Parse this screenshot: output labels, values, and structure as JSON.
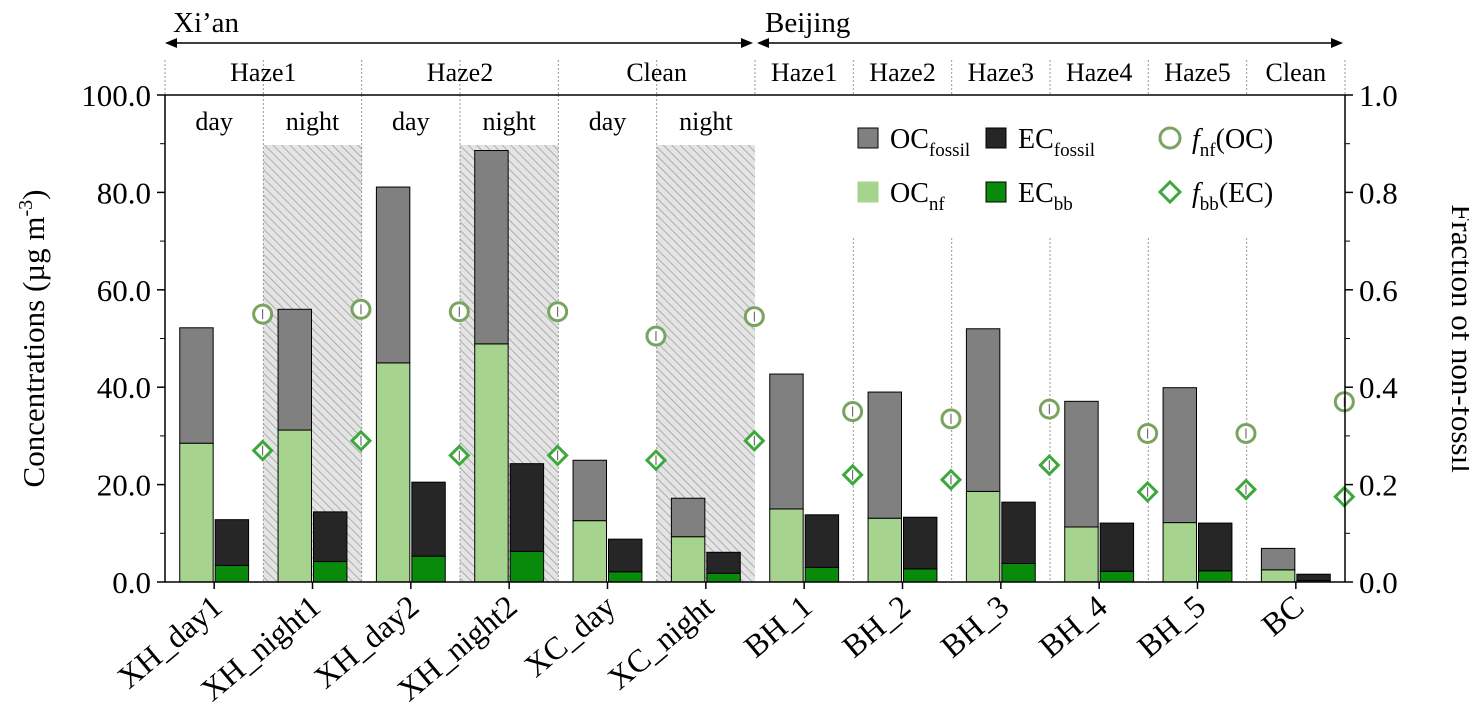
{
  "chart_data": {
    "type": "bar",
    "ylabel": "Concentrations (µg m",
    "ylabel_sup": "-3",
    "ylabel_close": ")",
    "y2label": "Fraction of non-fossil",
    "ylim": [
      0,
      100
    ],
    "y2lim": [
      0,
      1
    ],
    "yticks": [
      "0.0",
      "20.0",
      "40.0",
      "60.0",
      "80.0",
      "100.0"
    ],
    "y2ticks": [
      "0.0",
      "0.2",
      "0.4",
      "0.6",
      "0.8",
      "1.0"
    ],
    "regions": [
      {
        "label": "Xi’an",
        "from": 0,
        "to": 5
      },
      {
        "label": "Beijing",
        "from": 6,
        "to": 11
      }
    ],
    "groups": [
      {
        "label": "Haze1",
        "from": 0,
        "to": 1
      },
      {
        "label": "Haze2",
        "from": 2,
        "to": 3
      },
      {
        "label": "Clean",
        "from": 4,
        "to": 5
      },
      {
        "label": "Haze1",
        "from": 6,
        "to": 6
      },
      {
        "label": "Haze2",
        "from": 7,
        "to": 7
      },
      {
        "label": "Haze3",
        "from": 8,
        "to": 8
      },
      {
        "label": "Haze4",
        "from": 9,
        "to": 9
      },
      {
        "label": "Haze5",
        "from": 10,
        "to": 10
      },
      {
        "label": "Clean",
        "from": 11,
        "to": 11
      }
    ],
    "day_night_labels": [
      "day",
      "night",
      "day",
      "night",
      "day",
      "night"
    ],
    "night_shaded": [
      1,
      3,
      5
    ],
    "categories": [
      "XH_day1",
      "XH_night1",
      "XH_day2",
      "XH_night2",
      "XC_day",
      "XC_night",
      "BH_1",
      "BH_2",
      "BH_3",
      "BH_4",
      "BH_5",
      "BC"
    ],
    "series": [
      {
        "name": "OC_nf",
        "stack": "OC",
        "color": "#a6d38e",
        "values": [
          28.5,
          31.2,
          45.0,
          48.9,
          12.6,
          9.3,
          15.0,
          13.1,
          18.6,
          11.3,
          12.2,
          2.5
        ]
      },
      {
        "name": "OC_fossil",
        "stack": "OC",
        "color": "#808080",
        "values": [
          23.7,
          24.8,
          36.1,
          39.7,
          12.4,
          7.9,
          27.7,
          25.9,
          33.4,
          25.8,
          27.7,
          4.4
        ]
      },
      {
        "name": "EC_bb",
        "stack": "EC",
        "color": "#0a8a0a",
        "values": [
          3.4,
          4.2,
          5.3,
          6.3,
          2.1,
          1.8,
          3.0,
          2.7,
          3.8,
          2.2,
          2.3,
          0.3
        ]
      },
      {
        "name": "EC_fossil",
        "stack": "EC",
        "color": "#262626",
        "values": [
          9.4,
          10.2,
          15.2,
          18.0,
          6.7,
          4.3,
          10.8,
          10.6,
          12.6,
          9.9,
          9.8,
          1.3
        ]
      }
    ],
    "fractions": {
      "f_nf_OC": {
        "color": "#7aa360",
        "values": [
          0.55,
          0.56,
          0.555,
          0.555,
          0.505,
          0.545,
          0.35,
          0.335,
          0.355,
          0.305,
          0.305,
          0.37
        ]
      },
      "f_bb_EC": {
        "color": "#3ea83e",
        "values": [
          0.27,
          0.29,
          0.26,
          0.26,
          0.25,
          0.29,
          0.22,
          0.21,
          0.24,
          0.185,
          0.19,
          0.175
        ]
      }
    },
    "legend": [
      {
        "key": "OC_fossil",
        "base": "OC",
        "sub": "fossil",
        "marker": "square",
        "color": "#808080"
      },
      {
        "key": "EC_fossil",
        "base": "EC",
        "sub": "fossil",
        "marker": "square",
        "color": "#262626"
      },
      {
        "key": "f_nf_OC",
        "base": "f",
        "sub": "nf",
        "tail": "(OC)",
        "marker": "circle",
        "color": "#7aa360"
      },
      {
        "key": "OC_nf",
        "base": "OC",
        "sub": "nf",
        "marker": "square",
        "color": "#a6d38e"
      },
      {
        "key": "EC_bb",
        "base": "EC",
        "sub": "bb",
        "marker": "square",
        "color": "#0a8a0a"
      },
      {
        "key": "f_bb_EC",
        "base": "f",
        "sub": "bb",
        "tail": "(EC)",
        "marker": "diamond",
        "color": "#3ea83e"
      }
    ],
    "legend_position": "top-right",
    "grid": false
  }
}
